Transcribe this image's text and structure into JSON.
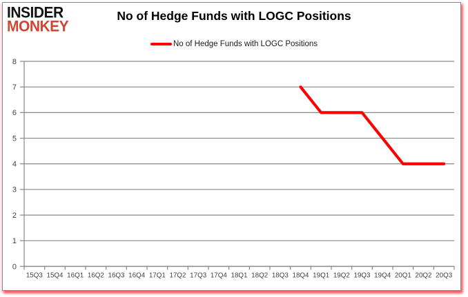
{
  "logo": {
    "line1": "INSIDER",
    "line2": "MONKEY",
    "line1_color": "#121212",
    "line2_color": "#ce4732"
  },
  "header": {
    "title": "No of Hedge Funds with LOGC Positions"
  },
  "legend": {
    "label": "No of Hedge Funds with LOGC Positions",
    "swatch_color": "#FF0000"
  },
  "colors": {
    "line": "#FF0000",
    "grid": "#878787",
    "axis": "#878787",
    "tick_label": "#404040",
    "frame_border": "#8a8a8a",
    "shadow": "#f34949",
    "background": "#ffffff"
  },
  "chart_data": {
    "type": "line",
    "title": "No of Hedge Funds with LOGC Positions",
    "xlabel": "",
    "ylabel": "",
    "categories": [
      "15Q3",
      "15Q4",
      "16Q1",
      "16Q2",
      "16Q3",
      "16Q4",
      "17Q1",
      "17Q2",
      "17Q3",
      "17Q4",
      "18Q1",
      "18Q2",
      "18Q3",
      "18Q4",
      "19Q1",
      "19Q2",
      "19Q3",
      "19Q4",
      "20Q1",
      "20Q2",
      "20Q3"
    ],
    "series": [
      {
        "name": "No of Hedge Funds with LOGC Positions",
        "color": "#FF0000",
        "values": [
          null,
          null,
          null,
          null,
          null,
          null,
          null,
          null,
          null,
          null,
          null,
          null,
          null,
          7,
          6,
          6,
          6,
          5,
          4,
          4,
          4
        ]
      }
    ],
    "ylim": [
      0,
      8
    ],
    "ytick_step": 1,
    "grid": "horizontal-major",
    "legend_position": "top-center"
  }
}
